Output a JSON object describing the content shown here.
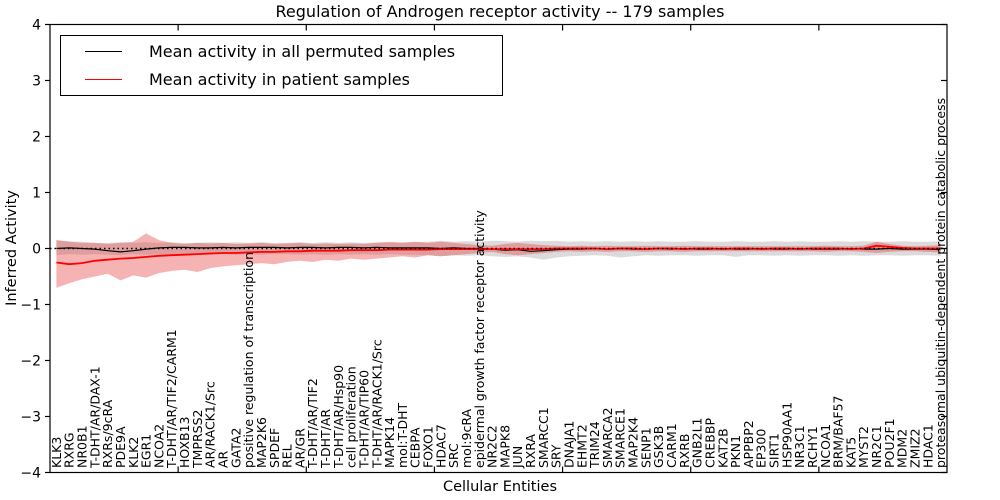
{
  "chart_data": {
    "type": "line",
    "title": "Regulation of Androgen receptor activity -- 179 samples",
    "xlabel": "Cellular Entities",
    "ylabel": "Inferred Activity",
    "ylim": [
      -4,
      4
    ],
    "yticks": [
      -4,
      -3,
      -2,
      -1,
      0,
      1,
      2,
      3,
      4
    ],
    "yticklabels": [
      "−4",
      "−3",
      "−2",
      "−1",
      "0",
      "1",
      "2",
      "3",
      "4"
    ],
    "xlim": [
      0,
      70
    ],
    "grid": false,
    "legend_position": "upper left",
    "zero_reference_line": "dotted black line at y=0",
    "categories": [
      "KLK3",
      "RXRG",
      "NR0B1",
      "T-DHT/AR/DAX-1",
      "RXRs/9cRA",
      "PDE9A",
      "KLK2",
      "EGR1",
      "NCOA2",
      "T-DHT/AR/TIF2/CARM1",
      "HOXB13",
      "TMPRSS2",
      "AR/RACK1/Src",
      "AR",
      "GATA2",
      "positive regulation of transcription",
      "MAP2K6",
      "SPDEF",
      "REL",
      "AR/GR",
      "T-DHT/AR/TIF2",
      "T-DHT/AR",
      "T-DHT/AR/Hsp90",
      "cell proliferation",
      "T-DHT/AR/TIP60",
      "T-DHT/AR/RACK1/Src",
      "MAPK14",
      "mol:T-DHT",
      "CEBPA",
      "FOXO1",
      "HDAC7",
      "SRC",
      "mol:9cRA",
      "epidermal growth factor receptor activity",
      "NR2C2",
      "MAPK8",
      "JUN",
      "RXRA",
      "SMARCC1",
      "SRY",
      "DNAJA1",
      "EHMT2",
      "TRIM24",
      "SMARCA2",
      "SMARCE1",
      "MAP2K4",
      "SENP1",
      "GSK3B",
      "CARM1",
      "RXRB",
      "GNB2L1",
      "CREBBP",
      "KAT2B",
      "PKN1",
      "APPBP2",
      "EP300",
      "SIRT1",
      "HSP90AA1",
      "NR3C1",
      "RCHY1",
      "NCOA1",
      "BRM/BAF57",
      "KAT5",
      "MYST2",
      "NR2C1",
      "POU2F1",
      "MDM2",
      "ZMIZ2",
      "HDAC1",
      "proteasomal ubiquitin-dependent protein catabolic process"
    ],
    "series": [
      {
        "name": "Mean activity in all permuted samples",
        "color": "#000000",
        "band_color": "#999999",
        "band_opacity": 0.35,
        "values": [
          0.0,
          0.01,
          0.0,
          -0.01,
          -0.04,
          -0.06,
          -0.04,
          -0.01,
          0.01,
          0.02,
          0.02,
          0.01,
          0.01,
          0.02,
          0.01,
          0.02,
          0.02,
          0.02,
          0.01,
          0.02,
          0.02,
          0.01,
          0.02,
          0.02,
          0.01,
          0.02,
          0.01,
          0.01,
          0.01,
          0.01,
          0.0,
          0.01,
          0.0,
          0.0,
          -0.01,
          -0.03,
          -0.02,
          -0.05,
          -0.04,
          -0.02,
          -0.01,
          -0.01,
          0.0,
          -0.01,
          0.0,
          -0.01,
          -0.01,
          0.0,
          -0.01,
          0.0,
          -0.01,
          -0.01,
          0.0,
          -0.01,
          -0.01,
          0.0,
          -0.01,
          -0.01,
          0.0,
          -0.01,
          -0.01,
          -0.01,
          0.0,
          -0.01,
          -0.01,
          0.0,
          -0.01,
          -0.01,
          -0.01,
          -0.02
        ],
        "band_upper": [
          0.15,
          0.13,
          0.12,
          0.1,
          0.1,
          0.11,
          0.1,
          0.11,
          0.1,
          0.11,
          0.1,
          0.1,
          0.11,
          0.1,
          0.11,
          0.1,
          0.11,
          0.1,
          0.1,
          0.11,
          0.1,
          0.11,
          0.1,
          0.11,
          0.1,
          0.11,
          0.1,
          0.11,
          0.11,
          0.12,
          0.14,
          0.12,
          0.13,
          0.12,
          0.14,
          0.13,
          0.12,
          0.14,
          0.13,
          0.14,
          0.12,
          0.13,
          0.12,
          0.13,
          0.12,
          0.13,
          0.12,
          0.13,
          0.12,
          0.12,
          0.13,
          0.12,
          0.12,
          0.13,
          0.12,
          0.12,
          0.13,
          0.12,
          0.13,
          0.12,
          0.12,
          0.13,
          0.12,
          0.13,
          0.12,
          0.12,
          0.13,
          0.12,
          0.12,
          0.13
        ],
        "band_lower": [
          -0.12,
          -0.1,
          -0.11,
          -0.1,
          -0.11,
          -0.12,
          -0.1,
          -0.11,
          -0.1,
          -0.11,
          -0.1,
          -0.1,
          -0.11,
          -0.1,
          -0.11,
          -0.1,
          -0.11,
          -0.1,
          -0.1,
          -0.11,
          -0.1,
          -0.11,
          -0.1,
          -0.11,
          -0.1,
          -0.11,
          -0.1,
          -0.11,
          -0.11,
          -0.12,
          -0.14,
          -0.12,
          -0.13,
          -0.12,
          -0.14,
          -0.15,
          -0.14,
          -0.16,
          -0.2,
          -0.16,
          -0.14,
          -0.13,
          -0.12,
          -0.13,
          -0.16,
          -0.14,
          -0.12,
          -0.13,
          -0.12,
          -0.12,
          -0.13,
          -0.12,
          -0.12,
          -0.15,
          -0.12,
          -0.12,
          -0.13,
          -0.12,
          -0.13,
          -0.12,
          -0.12,
          -0.13,
          -0.12,
          -0.13,
          -0.12,
          -0.12,
          -0.13,
          -0.12,
          -0.12,
          -0.13
        ]
      },
      {
        "name": "Mean activity in patient samples",
        "color": "#ff0000",
        "band_color": "#e84040",
        "band_opacity": 0.4,
        "values": [
          -0.25,
          -0.28,
          -0.26,
          -0.22,
          -0.2,
          -0.18,
          -0.17,
          -0.15,
          -0.13,
          -0.12,
          -0.11,
          -0.1,
          -0.09,
          -0.08,
          -0.08,
          -0.07,
          -0.06,
          -0.06,
          -0.05,
          -0.05,
          -0.04,
          -0.04,
          -0.04,
          -0.03,
          -0.03,
          -0.03,
          -0.02,
          -0.02,
          -0.02,
          -0.02,
          -0.01,
          -0.01,
          -0.01,
          -0.01,
          -0.01,
          -0.01,
          -0.01,
          -0.01,
          -0.01,
          0.0,
          0.0,
          0.0,
          0.0,
          -0.01,
          0.0,
          0.0,
          -0.01,
          0.0,
          0.0,
          -0.01,
          0.0,
          0.0,
          -0.01,
          0.0,
          0.0,
          -0.01,
          0.0,
          0.0,
          -0.01,
          0.0,
          0.0,
          0.0,
          -0.01,
          0.0,
          0.05,
          0.03,
          0.01,
          0.0,
          0.0,
          0.0
        ],
        "band_upper": [
          0.15,
          0.12,
          0.1,
          0.1,
          0.08,
          0.1,
          0.12,
          0.27,
          0.15,
          0.1,
          0.08,
          0.1,
          0.09,
          0.1,
          0.08,
          0.09,
          0.1,
          0.08,
          0.09,
          0.1,
          0.08,
          0.09,
          0.08,
          0.09,
          0.08,
          0.1,
          0.12,
          0.1,
          0.12,
          0.1,
          0.12,
          0.1,
          0.08,
          0.06,
          0.05,
          0.08,
          0.1,
          0.08,
          0.06,
          0.05,
          0.04,
          0.05,
          0.04,
          0.05,
          0.04,
          0.04,
          0.05,
          0.04,
          0.04,
          0.05,
          0.04,
          0.04,
          0.04,
          0.04,
          0.04,
          0.04,
          0.04,
          0.04,
          0.04,
          0.04,
          0.05,
          0.04,
          0.04,
          0.05,
          0.12,
          0.08,
          0.05,
          0.04,
          0.05,
          0.06
        ],
        "band_lower": [
          -0.7,
          -0.62,
          -0.55,
          -0.5,
          -0.45,
          -0.57,
          -0.48,
          -0.52,
          -0.44,
          -0.4,
          -0.38,
          -0.42,
          -0.35,
          -0.32,
          -0.3,
          -0.28,
          -0.26,
          -0.28,
          -0.24,
          -0.22,
          -0.24,
          -0.2,
          -0.22,
          -0.18,
          -0.2,
          -0.18,
          -0.16,
          -0.14,
          -0.16,
          -0.12,
          -0.14,
          -0.12,
          -0.1,
          -0.08,
          -0.06,
          -0.1,
          -0.12,
          -0.1,
          -0.08,
          -0.06,
          -0.05,
          -0.06,
          -0.05,
          -0.06,
          -0.05,
          -0.05,
          -0.06,
          -0.05,
          -0.05,
          -0.06,
          -0.05,
          -0.05,
          -0.05,
          -0.05,
          -0.05,
          -0.05,
          -0.05,
          -0.05,
          -0.05,
          -0.05,
          -0.06,
          -0.05,
          -0.05,
          -0.06,
          -0.08,
          -0.06,
          -0.05,
          -0.05,
          -0.06,
          -0.07
        ]
      }
    ]
  }
}
